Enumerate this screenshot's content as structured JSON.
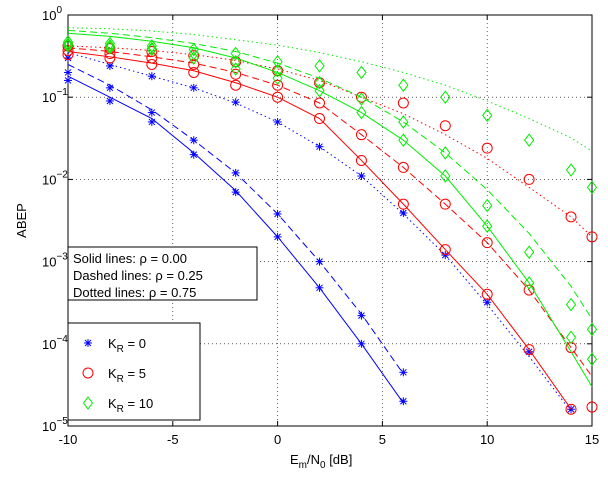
{
  "chart_data": {
    "type": "line",
    "log_y": true,
    "grid": true,
    "xlabel": [
      {
        "text": "E"
      },
      {
        "text": "m",
        "sub": true
      },
      {
        "text": "/N"
      },
      {
        "text": "0",
        "sub": true
      },
      {
        "text": " [dB]"
      }
    ],
    "ylabel": "ABEP",
    "xlim": [
      -10,
      15
    ],
    "xticks": [
      -10,
      -5,
      0,
      5,
      10,
      15
    ],
    "ylim": [
      1e-05,
      1
    ],
    "yticks": [
      {
        "value": 1e-05,
        "label": "10",
        "exponent": "−5"
      },
      {
        "value": 0.0001,
        "label": "10",
        "exponent": "−4"
      },
      {
        "value": 0.001,
        "label": "10",
        "exponent": "−3"
      },
      {
        "value": 0.01,
        "label": "10",
        "exponent": "−2"
      },
      {
        "value": 0.1,
        "label": "10",
        "exponent": "−1"
      },
      {
        "value": 1,
        "label": "10",
        "exponent": "0"
      }
    ],
    "annotations": [
      "Solid lines: ρ = 0.00",
      "Dashed lines: ρ = 0.25",
      "Dotted lines: ρ = 0.75"
    ],
    "line_styles": [
      "solid",
      "dashed",
      "dotted"
    ],
    "x": [
      -10,
      -8,
      -6,
      -4,
      -2,
      0,
      2,
      4,
      6,
      8,
      10,
      12,
      14,
      15
    ],
    "series": [
      {
        "name": [
          {
            "text": "K"
          },
          {
            "text": "R",
            "sub": true
          },
          {
            "text": " = 0"
          }
        ],
        "color": "#0000ff",
        "marker": "star",
        "curves": [
          [
            0.18,
            0.1,
            0.055,
            0.021,
            0.0073,
            0.002,
            0.00048,
            0.0001,
            1.9e-05,
            null,
            null,
            null,
            null,
            null
          ],
          [
            0.25,
            0.14,
            0.07,
            0.03,
            0.012,
            0.0038,
            0.001,
            0.00023,
            4.3e-05,
            null,
            null,
            null,
            null,
            null
          ],
          [
            0.35,
            0.25,
            0.18,
            0.13,
            0.085,
            0.05,
            0.025,
            0.011,
            0.0038,
            0.0012,
            0.0003,
            7e-05,
            1.5e-05,
            null
          ]
        ],
        "markers": [
          [
            0.16,
            0.09,
            0.05,
            0.02,
            0.007,
            0.002,
            0.00048,
            0.0001,
            2e-05,
            null,
            null,
            null,
            null,
            null
          ],
          [
            0.2,
            0.13,
            0.065,
            0.03,
            0.012,
            0.0038,
            0.001,
            0.00022,
            4.5e-05,
            null,
            null,
            null,
            null,
            null
          ],
          [
            0.3,
            0.24,
            0.18,
            0.13,
            0.087,
            0.05,
            0.025,
            0.011,
            0.0039,
            0.0012,
            0.00032,
            8e-05,
            1.6e-05,
            null
          ]
        ]
      },
      {
        "name": [
          {
            "text": "K"
          },
          {
            "text": "R",
            "sub": true
          },
          {
            "text": " = 5"
          }
        ],
        "color": "#ff0000",
        "marker": "circle",
        "curves": [
          [
            0.36,
            0.31,
            0.26,
            0.21,
            0.15,
            0.1,
            0.055,
            0.017,
            0.005,
            0.0014,
            0.0004,
            8.5e-05,
            1.6e-05,
            null
          ],
          [
            0.4,
            0.36,
            0.31,
            0.26,
            0.2,
            0.14,
            0.085,
            0.035,
            0.014,
            0.005,
            0.0017,
            0.00045,
            9e-05,
            4e-05
          ],
          [
            0.42,
            0.4,
            0.37,
            0.33,
            0.28,
            0.22,
            0.16,
            0.1,
            0.063,
            0.035,
            0.018,
            0.008,
            0.0035,
            0.002
          ]
        ],
        "markers": [
          [
            0.33,
            0.3,
            0.25,
            0.2,
            0.14,
            0.1,
            0.055,
            0.017,
            0.005,
            0.0014,
            0.0004,
            8.5e-05,
            1.6e-05,
            null
          ],
          [
            0.37,
            0.34,
            0.3,
            0.25,
            0.19,
            0.14,
            0.085,
            0.035,
            0.014,
            0.005,
            0.0017,
            0.00045,
            9e-05,
            1.7e-05
          ],
          [
            0.42,
            0.39,
            0.36,
            0.32,
            0.27,
            0.21,
            0.15,
            0.1,
            0.085,
            0.045,
            0.024,
            0.01,
            0.0035,
            0.002
          ]
        ]
      },
      {
        "name": [
          {
            "text": "K"
          },
          {
            "text": "R",
            "sub": true
          },
          {
            "text": " = 10"
          }
        ],
        "color": "#00ee00",
        "marker": "diamond",
        "curves": [
          [
            0.6,
            0.55,
            0.48,
            0.4,
            0.3,
            0.2,
            0.12,
            0.065,
            0.03,
            0.011,
            0.0027,
            0.00055,
            8e-05,
            3e-05
          ],
          [
            0.65,
            0.6,
            0.53,
            0.45,
            0.36,
            0.26,
            0.17,
            0.1,
            0.05,
            0.021,
            0.0075,
            0.0022,
            0.0005,
            0.0002
          ],
          [
            0.7,
            0.68,
            0.64,
            0.58,
            0.5,
            0.43,
            0.35,
            0.27,
            0.2,
            0.14,
            0.09,
            0.055,
            0.032,
            0.022
          ]
        ],
        "markers": [
          [
            0.42,
            0.4,
            0.38,
            0.3,
            0.22,
            0.17,
            0.12,
            0.065,
            0.03,
            0.011,
            0.0027,
            0.00055,
            0.00012,
            6.5e-05
          ],
          [
            0.44,
            0.42,
            0.39,
            0.34,
            0.27,
            0.21,
            0.15,
            0.095,
            0.05,
            0.021,
            0.0048,
            0.0013,
            0.0003,
            0.00015
          ],
          [
            0.47,
            0.45,
            0.42,
            0.38,
            0.34,
            0.27,
            0.24,
            0.2,
            0.14,
            0.1,
            0.06,
            0.03,
            0.013,
            0.008
          ]
        ]
      }
    ]
  }
}
